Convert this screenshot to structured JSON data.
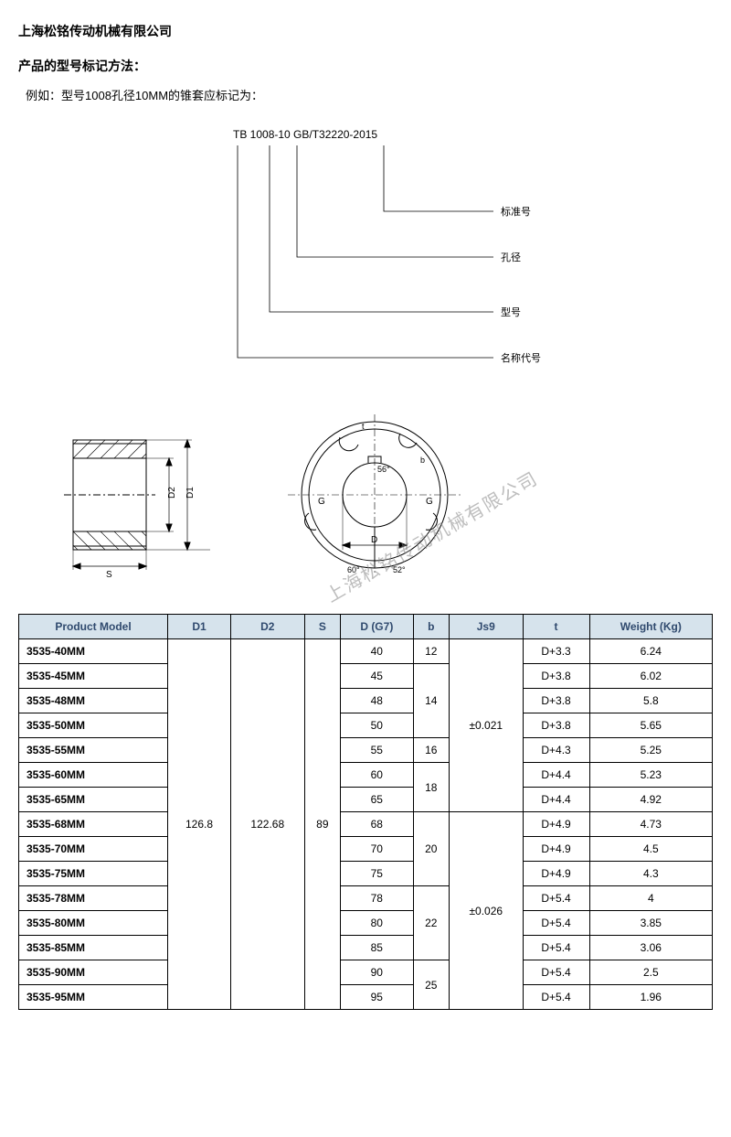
{
  "company": "上海松铭传动机械有限公司",
  "section_title": "产品的型号标记方法：",
  "example_text": "例如：型号1008孔径10MM的锥套应标记为：",
  "designation": {
    "full": "TB  1008-10 GB/T32220-2015",
    "labels": {
      "standard": "标准号",
      "bore": "孔径",
      "model": "型号",
      "name_code": "名称代号"
    }
  },
  "drawing_labels": {
    "d1": "D1",
    "d2": "D2",
    "s": "S",
    "d": "D",
    "g": "G",
    "b": "b",
    "t": "t",
    "ang60": "60°",
    "ang52": "52°",
    "ang56": "56°"
  },
  "watermark": "上海松铭传动机械有限公司",
  "table": {
    "headers": [
      "Product Model",
      "D1",
      "D2",
      "S",
      "D (G7)",
      "b",
      "Js9",
      "t",
      "Weight (Kg)"
    ],
    "header_bg": "#d6e3ec",
    "header_color": "#304a6e",
    "d1_common": "126.8",
    "d2_common": "122.68",
    "s_common": "89",
    "js9_groups": [
      {
        "value": "±0.021",
        "span": 7
      },
      {
        "value": "±0.026",
        "span": 8
      }
    ],
    "b_groups": [
      {
        "value": "12",
        "span": 1
      },
      {
        "value": "14",
        "span": 3
      },
      {
        "value": "16",
        "span": 1
      },
      {
        "value": "18",
        "span": 2
      },
      {
        "value": "20",
        "span": 3
      },
      {
        "value": "22",
        "span": 3
      },
      {
        "value": "25",
        "span": 2
      }
    ],
    "rows": [
      {
        "model": "3535-40MM",
        "d": "40",
        "t": "D+3.3",
        "w": "6.24"
      },
      {
        "model": "3535-45MM",
        "d": "45",
        "t": "D+3.8",
        "w": "6.02"
      },
      {
        "model": "3535-48MM",
        "d": "48",
        "t": "D+3.8",
        "w": "5.8"
      },
      {
        "model": "3535-50MM",
        "d": "50",
        "t": "D+3.8",
        "w": "5.65"
      },
      {
        "model": "3535-55MM",
        "d": "55",
        "t": "D+4.3",
        "w": "5.25"
      },
      {
        "model": "3535-60MM",
        "d": "60",
        "t": "D+4.4",
        "w": "5.23"
      },
      {
        "model": "3535-65MM",
        "d": "65",
        "t": "D+4.4",
        "w": "4.92"
      },
      {
        "model": "3535-68MM",
        "d": "68",
        "t": "D+4.9",
        "w": "4.73"
      },
      {
        "model": "3535-70MM",
        "d": "70",
        "t": "D+4.9",
        "w": "4.5"
      },
      {
        "model": "3535-75MM",
        "d": "75",
        "t": "D+4.9",
        "w": "4.3"
      },
      {
        "model": "3535-78MM",
        "d": "78",
        "t": "D+5.4",
        "w": "4"
      },
      {
        "model": "3535-80MM",
        "d": "80",
        "t": "D+5.4",
        "w": "3.85"
      },
      {
        "model": "3535-85MM",
        "d": "85",
        "t": "D+5.4",
        "w": "3.06"
      },
      {
        "model": "3535-90MM",
        "d": "90",
        "t": "D+5.4",
        "w": "2.5"
      },
      {
        "model": "3535-95MM",
        "d": "95",
        "t": "D+5.4",
        "w": "1.96"
      }
    ]
  }
}
